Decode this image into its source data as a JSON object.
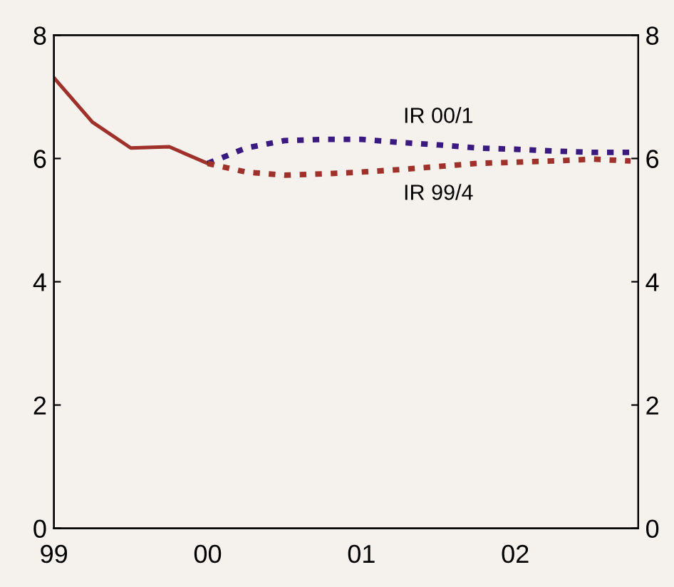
{
  "chart_data": {
    "type": "line",
    "xlim": [
      1999,
      2002.8
    ],
    "xticks": [
      {
        "value": 1999,
        "label": "99"
      },
      {
        "value": 2000,
        "label": "00"
      },
      {
        "value": 2001,
        "label": "01"
      },
      {
        "value": 2002,
        "label": "02"
      }
    ],
    "ylim": [
      0,
      8
    ],
    "yticks": [
      0,
      2,
      4,
      6,
      8
    ],
    "y2lim": [
      0,
      8
    ],
    "y2ticks": [
      0,
      2,
      4,
      6,
      8
    ],
    "grid": false,
    "legend": false,
    "marker": "none",
    "series": [
      {
        "color": "#a0302a",
        "line_style": "solid",
        "x": [
          1999,
          1999.25,
          1999.5,
          1999.75,
          2000
        ],
        "values": [
          7.31,
          6.59,
          6.17,
          6.19,
          5.92
        ]
      },
      {
        "name": "IR 00/1",
        "color": "#3a1a80",
        "line_style": "dotted",
        "x": [
          2000,
          2000.25,
          2000.5,
          2000.75,
          2001,
          2001.25,
          2001.5,
          2001.75,
          2002,
          2002.25,
          2002.5,
          2002.75
        ],
        "values": [
          5.92,
          6.17,
          6.29,
          6.31,
          6.31,
          6.26,
          6.22,
          6.17,
          6.15,
          6.12,
          6.1,
          6.1
        ]
      },
      {
        "name": "IR 99/4",
        "color": "#a0302a",
        "line_style": "dotted",
        "x": [
          2000,
          2000.25,
          2000.5,
          2000.75,
          2001,
          2001.25,
          2001.5,
          2001.75,
          2002,
          2002.25,
          2002.5,
          2002.75
        ],
        "values": [
          5.92,
          5.78,
          5.73,
          5.75,
          5.78,
          5.82,
          5.87,
          5.92,
          5.94,
          5.96,
          5.99,
          5.96
        ]
      }
    ]
  }
}
